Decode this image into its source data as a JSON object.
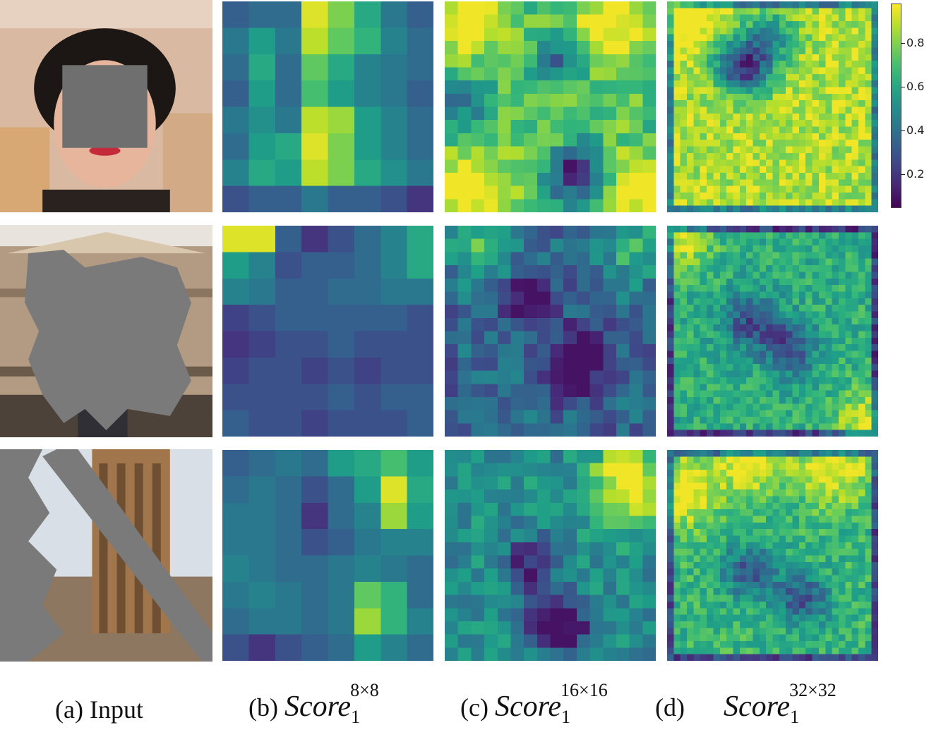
{
  "captions": {
    "a": "(a) Input",
    "b_prefix": "(b)",
    "c_prefix": "(c)",
    "d_prefix": "(d)",
    "score_word": "Score",
    "subscript": "1",
    "b_sup": "8×8",
    "c_sup": "16×16",
    "d_sup": "32×32"
  },
  "colorbar": {
    "ticks": [
      "0.8",
      "0.6",
      "0.4",
      "0.2"
    ],
    "tick_values": [
      0.8,
      0.6,
      0.4,
      0.2
    ],
    "min": 0.05,
    "max": 0.98,
    "colormap": "viridis"
  },
  "rows": [
    {
      "input": {
        "type": "face",
        "mask": "center-box"
      },
      "heatmaps": [
        {
          "n": 8,
          "values": [
            [
              0.3,
              0.35,
              0.35,
              0.95,
              0.8,
              0.6,
              0.4,
              0.3
            ],
            [
              0.4,
              0.55,
              0.4,
              0.9,
              0.75,
              0.65,
              0.45,
              0.35
            ],
            [
              0.35,
              0.6,
              0.35,
              0.75,
              0.6,
              0.45,
              0.4,
              0.35
            ],
            [
              0.3,
              0.55,
              0.35,
              0.7,
              0.55,
              0.45,
              0.4,
              0.3
            ],
            [
              0.4,
              0.5,
              0.4,
              0.9,
              0.85,
              0.55,
              0.45,
              0.35
            ],
            [
              0.35,
              0.55,
              0.6,
              0.95,
              0.8,
              0.55,
              0.45,
              0.35
            ],
            [
              0.45,
              0.6,
              0.55,
              0.9,
              0.8,
              0.6,
              0.5,
              0.4
            ],
            [
              0.25,
              0.3,
              0.3,
              0.4,
              0.3,
              0.3,
              0.25,
              0.15
            ]
          ]
        },
        {
          "n": 16,
          "base": 0.75,
          "hot": [
            [
              1,
              1
            ],
            [
              1,
              12
            ],
            [
              14,
              1
            ],
            [
              14,
              14
            ]
          ],
          "cold": [
            [
              12,
              10
            ],
            [
              4,
              8
            ],
            [
              13,
              9
            ],
            [
              7,
              1
            ]
          ]
        },
        {
          "n": 32,
          "base": 0.88,
          "hot": [
            [
              1,
              1
            ]
          ],
          "cold": [
            [
              9,
              10
            ],
            [
              10,
              12
            ],
            [
              5,
              15
            ]
          ]
        }
      ]
    },
    {
      "input": {
        "type": "facade",
        "mask": "free-form"
      },
      "heatmaps": [
        {
          "n": 8,
          "values": [
            [
              0.95,
              0.95,
              0.3,
              0.15,
              0.25,
              0.35,
              0.45,
              0.6
            ],
            [
              0.55,
              0.45,
              0.25,
              0.3,
              0.3,
              0.35,
              0.45,
              0.6
            ],
            [
              0.45,
              0.4,
              0.3,
              0.3,
              0.35,
              0.35,
              0.4,
              0.4
            ],
            [
              0.2,
              0.25,
              0.3,
              0.3,
              0.3,
              0.3,
              0.3,
              0.25
            ],
            [
              0.15,
              0.2,
              0.25,
              0.25,
              0.3,
              0.25,
              0.25,
              0.25
            ],
            [
              0.2,
              0.25,
              0.25,
              0.2,
              0.25,
              0.2,
              0.25,
              0.25
            ],
            [
              0.25,
              0.25,
              0.25,
              0.25,
              0.3,
              0.25,
              0.3,
              0.3
            ],
            [
              0.3,
              0.25,
              0.25,
              0.2,
              0.25,
              0.25,
              0.25,
              0.3
            ]
          ]
        },
        {
          "n": 16,
          "base": 0.35,
          "hot": [
            [
              1,
              2
            ],
            [
              1,
              14
            ]
          ],
          "cold": [
            [
              5,
              6
            ],
            [
              9,
              10
            ],
            [
              11,
              9
            ]
          ]
        },
        {
          "n": 32,
          "base": 0.62,
          "hot": [
            [
              1,
              1
            ],
            [
              30,
              30
            ]
          ],
          "cold": [
            [
              14,
              12
            ],
            [
              18,
              18
            ]
          ]
        }
      ]
    },
    {
      "input": {
        "type": "ruins",
        "mask": "diagonal-strokes"
      },
      "heatmaps": [
        {
          "n": 8,
          "values": [
            [
              0.3,
              0.35,
              0.4,
              0.35,
              0.55,
              0.6,
              0.7,
              0.55
            ],
            [
              0.35,
              0.4,
              0.35,
              0.25,
              0.35,
              0.55,
              0.95,
              0.6
            ],
            [
              0.4,
              0.4,
              0.35,
              0.15,
              0.35,
              0.45,
              0.85,
              0.55
            ],
            [
              0.4,
              0.4,
              0.35,
              0.25,
              0.3,
              0.4,
              0.45,
              0.45
            ],
            [
              0.45,
              0.4,
              0.35,
              0.35,
              0.4,
              0.45,
              0.4,
              0.35
            ],
            [
              0.4,
              0.45,
              0.4,
              0.35,
              0.4,
              0.75,
              0.65,
              0.35
            ],
            [
              0.35,
              0.4,
              0.4,
              0.35,
              0.4,
              0.85,
              0.65,
              0.45
            ],
            [
              0.25,
              0.15,
              0.25,
              0.3,
              0.35,
              0.55,
              0.45,
              0.35
            ]
          ]
        },
        {
          "n": 16,
          "base": 0.5,
          "hot": [
            [
              3,
              14
            ],
            [
              1,
              13
            ]
          ],
          "cold": [
            [
              8,
              6
            ],
            [
              12,
              7
            ],
            [
              13,
              9
            ]
          ]
        },
        {
          "n": 32,
          "base": 0.66,
          "hot": [
            [
              6,
              2
            ],
            [
              1,
              12
            ],
            [
              2,
              25
            ]
          ],
          "cold": [
            [
              18,
              12
            ],
            [
              22,
              20
            ]
          ]
        }
      ]
    }
  ]
}
